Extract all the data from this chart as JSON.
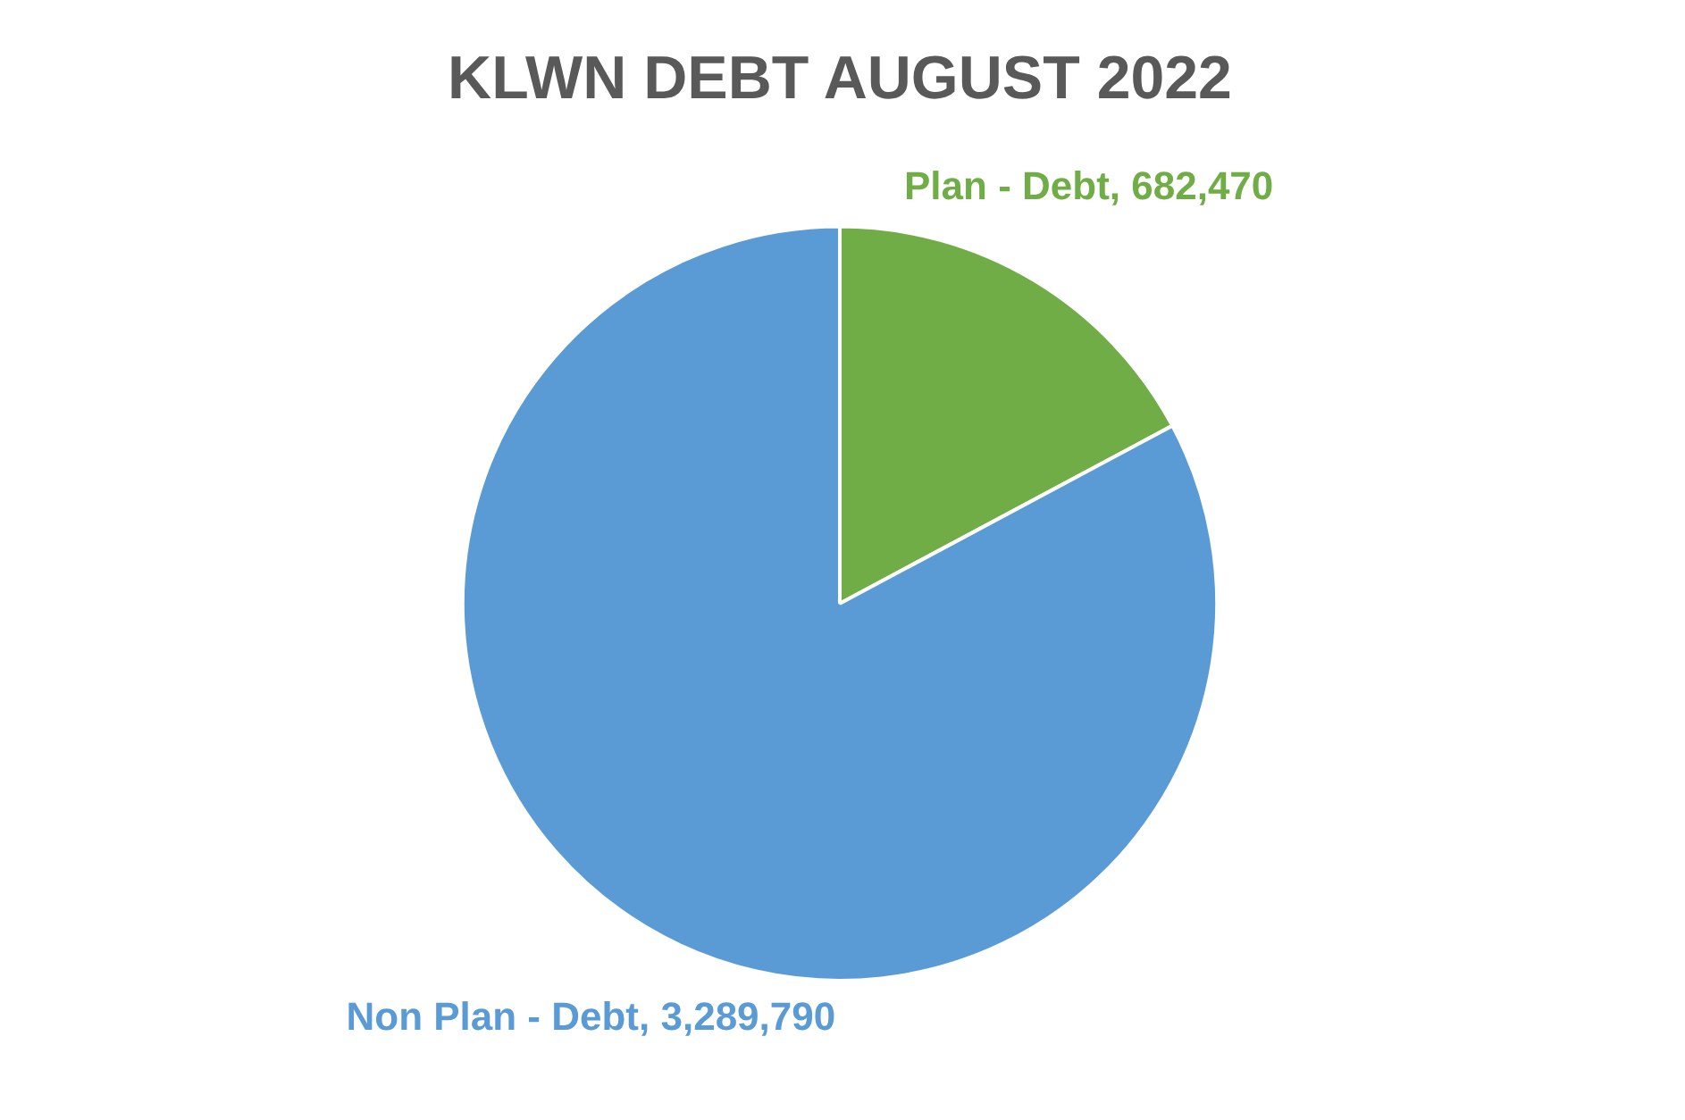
{
  "chart_data": {
    "type": "pie",
    "title": "KLWN DEBT AUGUST 2022",
    "categories": [
      "Plan - Debt",
      "Non Plan - Debt"
    ],
    "values": [
      682470,
      3289790
    ],
    "value_labels": [
      "682,470",
      "3,289,790"
    ],
    "colors": [
      "#70ad47",
      "#5b9bd5"
    ],
    "legend": false
  }
}
